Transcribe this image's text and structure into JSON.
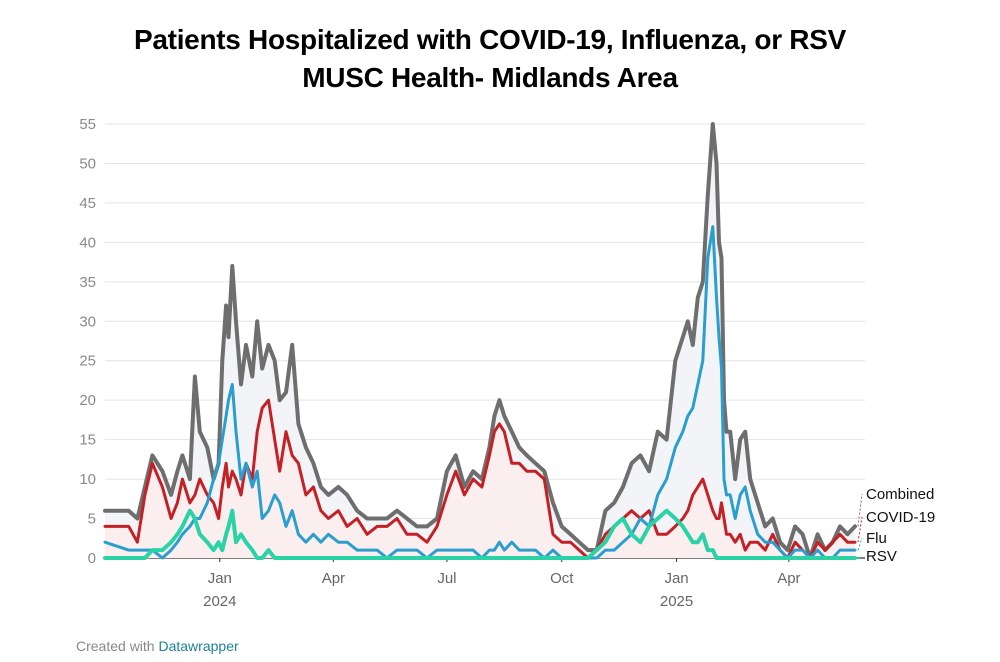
{
  "chart_data": {
    "type": "line",
    "title": "Patients Hospitalized with COVID-19, Influenza, or RSV",
    "subtitle": "MUSC Health- Midlands Area",
    "xlabel": "",
    "ylabel": "",
    "ylim": [
      0,
      55
    ],
    "yticks": [
      0,
      5,
      10,
      15,
      20,
      25,
      30,
      35,
      40,
      45,
      50,
      55
    ],
    "xlim": [
      "2023-10-01",
      "2025-06-01"
    ],
    "xticks": [
      {
        "date": "2024-01-01",
        "label": "Jan",
        "sublabel": "2024"
      },
      {
        "date": "2024-04-01",
        "label": "Apr",
        "sublabel": ""
      },
      {
        "date": "2024-07-01",
        "label": "Jul",
        "sublabel": ""
      },
      {
        "date": "2024-10-01",
        "label": "Oct",
        "sublabel": ""
      },
      {
        "date": "2025-01-01",
        "label": "Jan",
        "sublabel": "2025"
      },
      {
        "date": "2025-04-01",
        "label": "Apr",
        "sublabel": ""
      }
    ],
    "grid": true,
    "legend": "direct labels at right end of lines",
    "series": [
      {
        "name": "Combined",
        "color": "#6e6e6e",
        "fill": "#f2f4f7",
        "x": [
          "2023-10-01",
          "2023-10-20",
          "2023-10-27",
          "2023-11-02",
          "2023-11-08",
          "2023-11-16",
          "2023-11-23",
          "2023-11-28",
          "2023-12-02",
          "2023-12-08",
          "2023-12-12",
          "2023-12-16",
          "2023-12-22",
          "2023-12-27",
          "2023-12-31",
          "2024-01-03",
          "2024-01-06",
          "2024-01-08",
          "2024-01-11",
          "2024-01-14",
          "2024-01-18",
          "2024-01-22",
          "2024-01-27",
          "2024-01-31",
          "2024-02-04",
          "2024-02-09",
          "2024-02-14",
          "2024-02-18",
          "2024-02-23",
          "2024-02-28",
          "2024-03-04",
          "2024-03-10",
          "2024-03-16",
          "2024-03-22",
          "2024-03-28",
          "2024-04-05",
          "2024-04-12",
          "2024-04-20",
          "2024-04-28",
          "2024-05-06",
          "2024-05-14",
          "2024-05-22",
          "2024-05-30",
          "2024-06-07",
          "2024-06-15",
          "2024-06-23",
          "2024-07-01",
          "2024-07-08",
          "2024-07-15",
          "2024-07-22",
          "2024-07-29",
          "2024-08-04",
          "2024-08-08",
          "2024-08-12",
          "2024-08-16",
          "2024-08-22",
          "2024-08-28",
          "2024-09-03",
          "2024-09-10",
          "2024-09-17",
          "2024-09-24",
          "2024-10-01",
          "2024-10-08",
          "2024-10-15",
          "2024-10-22",
          "2024-10-29",
          "2024-11-05",
          "2024-11-12",
          "2024-11-19",
          "2024-11-26",
          "2024-12-03",
          "2024-12-10",
          "2024-12-17",
          "2024-12-24",
          "2024-12-31",
          "2025-01-06",
          "2025-01-10",
          "2025-01-14",
          "2025-01-18",
          "2025-01-22",
          "2025-01-26",
          "2025-01-30",
          "2025-02-02",
          "2025-02-04",
          "2025-02-06",
          "2025-02-08",
          "2025-02-10",
          "2025-02-13",
          "2025-02-17",
          "2025-02-21",
          "2025-02-25",
          "2025-03-01",
          "2025-03-07",
          "2025-03-13",
          "2025-03-19",
          "2025-03-25",
          "2025-03-31",
          "2025-04-06",
          "2025-04-12",
          "2025-04-18",
          "2025-04-24",
          "2025-04-30",
          "2025-05-06",
          "2025-05-12",
          "2025-05-18",
          "2025-05-24"
        ],
        "values": [
          6,
          6,
          5,
          9,
          13,
          11,
          8,
          11,
          13,
          10,
          23,
          16,
          14,
          10,
          12,
          25,
          32,
          28,
          37,
          30,
          22,
          27,
          23,
          30,
          24,
          27,
          25,
          20,
          21,
          27,
          17,
          14,
          12,
          9,
          8,
          9,
          8,
          6,
          5,
          5,
          5,
          6,
          5,
          4,
          4,
          5,
          11,
          13,
          9,
          11,
          10,
          14,
          18,
          20,
          18,
          16,
          14,
          13,
          12,
          11,
          7,
          4,
          3,
          2,
          1,
          1,
          6,
          7,
          9,
          12,
          13,
          11,
          16,
          15,
          25,
          28,
          30,
          27,
          33,
          35,
          46,
          55,
          50,
          40,
          38,
          20,
          16,
          16,
          10,
          15,
          16,
          10,
          7,
          4,
          5,
          2,
          1,
          4,
          3,
          0,
          3,
          1,
          2,
          4,
          3,
          4
        ]
      },
      {
        "name": "COVID-19",
        "color": "#c42127",
        "x": [
          "2023-10-01",
          "2023-10-20",
          "2023-10-27",
          "2023-11-02",
          "2023-11-08",
          "2023-11-16",
          "2023-11-23",
          "2023-11-28",
          "2023-12-02",
          "2023-12-08",
          "2023-12-12",
          "2023-12-16",
          "2023-12-22",
          "2023-12-27",
          "2023-12-31",
          "2024-01-03",
          "2024-01-06",
          "2024-01-08",
          "2024-01-11",
          "2024-01-14",
          "2024-01-18",
          "2024-01-22",
          "2024-01-27",
          "2024-01-31",
          "2024-02-04",
          "2024-02-09",
          "2024-02-14",
          "2024-02-18",
          "2024-02-23",
          "2024-02-28",
          "2024-03-04",
          "2024-03-10",
          "2024-03-16",
          "2024-03-22",
          "2024-03-28",
          "2024-04-05",
          "2024-04-12",
          "2024-04-20",
          "2024-04-28",
          "2024-05-06",
          "2024-05-14",
          "2024-05-22",
          "2024-05-30",
          "2024-06-07",
          "2024-06-15",
          "2024-06-23",
          "2024-07-01",
          "2024-07-08",
          "2024-07-15",
          "2024-07-22",
          "2024-07-29",
          "2024-08-04",
          "2024-08-08",
          "2024-08-12",
          "2024-08-16",
          "2024-08-22",
          "2024-08-28",
          "2024-09-03",
          "2024-09-10",
          "2024-09-17",
          "2024-09-24",
          "2024-10-01",
          "2024-10-08",
          "2024-10-15",
          "2024-10-22",
          "2024-10-29",
          "2024-11-05",
          "2024-11-12",
          "2024-11-19",
          "2024-11-26",
          "2024-12-03",
          "2024-12-10",
          "2024-12-17",
          "2024-12-24",
          "2024-12-31",
          "2025-01-06",
          "2025-01-10",
          "2025-01-14",
          "2025-01-18",
          "2025-01-22",
          "2025-01-26",
          "2025-01-30",
          "2025-02-02",
          "2025-02-04",
          "2025-02-06",
          "2025-02-08",
          "2025-02-10",
          "2025-02-13",
          "2025-02-17",
          "2025-02-21",
          "2025-02-25",
          "2025-03-01",
          "2025-03-07",
          "2025-03-13",
          "2025-03-19",
          "2025-03-25",
          "2025-03-31",
          "2025-04-06",
          "2025-04-12",
          "2025-04-18",
          "2025-04-24",
          "2025-04-30",
          "2025-05-06",
          "2025-05-12",
          "2025-05-18",
          "2025-05-24"
        ],
        "values": [
          4,
          4,
          2,
          8,
          12,
          9,
          5,
          7,
          10,
          7,
          8,
          10,
          8,
          7,
          5,
          9,
          12,
          9,
          11,
          10,
          8,
          12,
          10,
          16,
          19,
          20,
          15,
          11,
          16,
          13,
          12,
          8,
          9,
          6,
          5,
          6,
          4,
          5,
          3,
          4,
          4,
          5,
          3,
          3,
          2,
          4,
          8,
          11,
          8,
          10,
          9,
          13,
          16,
          17,
          16,
          12,
          12,
          11,
          11,
          10,
          3,
          2,
          2,
          1,
          0,
          1,
          3,
          4,
          5,
          6,
          5,
          6,
          3,
          3,
          4,
          5,
          6,
          8,
          9,
          10,
          8,
          6,
          5,
          5,
          7,
          5,
          3,
          3,
          2,
          3,
          1,
          2,
          2,
          1,
          3,
          1,
          0,
          2,
          1,
          0,
          2,
          1,
          2,
          3,
          2,
          2
        ]
      },
      {
        "name": "Flu",
        "color": "#2a9fcf",
        "x": [
          "2023-10-01",
          "2023-10-20",
          "2023-10-27",
          "2023-11-02",
          "2023-11-08",
          "2023-11-16",
          "2023-11-23",
          "2023-11-28",
          "2023-12-02",
          "2023-12-08",
          "2023-12-12",
          "2023-12-16",
          "2023-12-22",
          "2023-12-27",
          "2023-12-31",
          "2024-01-03",
          "2024-01-06",
          "2024-01-08",
          "2024-01-11",
          "2024-01-14",
          "2024-01-18",
          "2024-01-22",
          "2024-01-27",
          "2024-01-31",
          "2024-02-04",
          "2024-02-09",
          "2024-02-14",
          "2024-02-18",
          "2024-02-23",
          "2024-02-28",
          "2024-03-04",
          "2024-03-10",
          "2024-03-16",
          "2024-03-22",
          "2024-03-28",
          "2024-04-05",
          "2024-04-12",
          "2024-04-20",
          "2024-04-28",
          "2024-05-06",
          "2024-05-14",
          "2024-05-22",
          "2024-05-30",
          "2024-06-07",
          "2024-06-15",
          "2024-06-23",
          "2024-07-01",
          "2024-07-08",
          "2024-07-15",
          "2024-07-22",
          "2024-07-29",
          "2024-08-04",
          "2024-08-08",
          "2024-08-12",
          "2024-08-16",
          "2024-08-22",
          "2024-08-28",
          "2024-09-03",
          "2024-09-10",
          "2024-09-17",
          "2024-09-24",
          "2024-10-01",
          "2024-10-08",
          "2024-10-15",
          "2024-10-22",
          "2024-10-29",
          "2024-11-05",
          "2024-11-12",
          "2024-11-19",
          "2024-11-26",
          "2024-12-03",
          "2024-12-10",
          "2024-12-17",
          "2024-12-24",
          "2024-12-31",
          "2025-01-06",
          "2025-01-10",
          "2025-01-14",
          "2025-01-18",
          "2025-01-22",
          "2025-01-26",
          "2025-01-30",
          "2025-02-02",
          "2025-02-04",
          "2025-02-06",
          "2025-02-08",
          "2025-02-10",
          "2025-02-13",
          "2025-02-17",
          "2025-02-21",
          "2025-02-25",
          "2025-03-01",
          "2025-03-07",
          "2025-03-13",
          "2025-03-19",
          "2025-03-25",
          "2025-03-31",
          "2025-04-06",
          "2025-04-12",
          "2025-04-18",
          "2025-04-24",
          "2025-04-30",
          "2025-05-06",
          "2025-05-12",
          "2025-05-18",
          "2025-05-24"
        ],
        "values": [
          2,
          1,
          1,
          1,
          1,
          0,
          1,
          2,
          3,
          4,
          5,
          5,
          7,
          10,
          12,
          15,
          18,
          20,
          22,
          16,
          10,
          12,
          9,
          11,
          5,
          6,
          8,
          7,
          4,
          6,
          3,
          2,
          3,
          2,
          3,
          2,
          2,
          1,
          1,
          1,
          0,
          1,
          1,
          1,
          0,
          1,
          1,
          1,
          1,
          1,
          0,
          1,
          1,
          2,
          1,
          2,
          1,
          1,
          1,
          0,
          1,
          0,
          0,
          0,
          0,
          0,
          1,
          1,
          2,
          3,
          5,
          4,
          8,
          10,
          14,
          16,
          18,
          19,
          22,
          25,
          38,
          42,
          33,
          28,
          24,
          10,
          8,
          8,
          5,
          8,
          9,
          6,
          3,
          2,
          2,
          1,
          0,
          1,
          1,
          0,
          1,
          0,
          0,
          1,
          1,
          1
        ]
      },
      {
        "name": "RSV",
        "color": "#2ad3a6",
        "x": [
          "2023-10-01",
          "2023-10-20",
          "2023-10-27",
          "2023-11-02",
          "2023-11-08",
          "2023-11-16",
          "2023-11-23",
          "2023-11-28",
          "2023-12-02",
          "2023-12-08",
          "2023-12-12",
          "2023-12-16",
          "2023-12-22",
          "2023-12-27",
          "2023-12-31",
          "2024-01-03",
          "2024-01-06",
          "2024-01-08",
          "2024-01-11",
          "2024-01-14",
          "2024-01-18",
          "2024-01-22",
          "2024-01-27",
          "2024-01-31",
          "2024-02-04",
          "2024-02-09",
          "2024-02-14",
          "2024-02-18",
          "2024-02-23",
          "2024-02-28",
          "2024-03-04",
          "2024-03-10",
          "2024-03-16",
          "2024-03-22",
          "2024-03-28",
          "2024-04-05",
          "2024-04-12",
          "2024-04-20",
          "2024-04-28",
          "2024-05-06",
          "2024-05-14",
          "2024-05-22",
          "2024-05-30",
          "2024-06-07",
          "2024-06-15",
          "2024-06-23",
          "2024-07-01",
          "2024-07-08",
          "2024-07-15",
          "2024-07-22",
          "2024-07-29",
          "2024-08-04",
          "2024-08-08",
          "2024-08-12",
          "2024-08-16",
          "2024-08-22",
          "2024-08-28",
          "2024-09-03",
          "2024-09-10",
          "2024-09-17",
          "2024-09-24",
          "2024-10-01",
          "2024-10-08",
          "2024-10-15",
          "2024-10-22",
          "2024-10-29",
          "2024-11-05",
          "2024-11-12",
          "2024-11-19",
          "2024-11-26",
          "2024-12-03",
          "2024-12-10",
          "2024-12-17",
          "2024-12-24",
          "2024-12-31",
          "2025-01-06",
          "2025-01-10",
          "2025-01-14",
          "2025-01-18",
          "2025-01-22",
          "2025-01-26",
          "2025-01-30",
          "2025-02-02",
          "2025-02-04",
          "2025-02-06",
          "2025-02-08",
          "2025-02-10",
          "2025-02-13",
          "2025-02-17",
          "2025-02-21",
          "2025-02-25",
          "2025-03-01",
          "2025-03-07",
          "2025-03-13",
          "2025-03-19",
          "2025-03-25",
          "2025-03-31",
          "2025-04-06",
          "2025-04-12",
          "2025-04-18",
          "2025-04-24",
          "2025-04-30",
          "2025-05-06",
          "2025-05-12",
          "2025-05-18",
          "2025-05-24"
        ],
        "values": [
          0,
          0,
          0,
          0,
          1,
          1,
          2,
          3,
          4,
          6,
          5,
          3,
          2,
          1,
          2,
          1,
          3,
          4,
          6,
          2,
          3,
          2,
          1,
          0,
          0,
          1,
          0,
          0,
          0,
          0,
          0,
          0,
          0,
          0,
          0,
          0,
          0,
          0,
          0,
          0,
          0,
          0,
          0,
          0,
          0,
          0,
          0,
          0,
          0,
          0,
          0,
          0,
          0,
          0,
          0,
          0,
          0,
          0,
          0,
          0,
          0,
          0,
          0,
          0,
          0,
          1,
          2,
          4,
          5,
          3,
          2,
          4,
          5,
          6,
          5,
          4,
          3,
          2,
          2,
          3,
          1,
          1,
          0,
          0,
          0,
          0,
          0,
          0,
          0,
          0,
          0,
          0,
          0,
          0,
          0,
          0,
          0,
          0,
          0,
          0,
          0,
          0,
          0,
          0,
          0,
          0
        ]
      }
    ],
    "end_labels": [
      "Combined",
      "COVID-19",
      "Flu",
      "RSV"
    ]
  },
  "footer": {
    "prefix": "Created with",
    "brand": "Datawrapper"
  }
}
